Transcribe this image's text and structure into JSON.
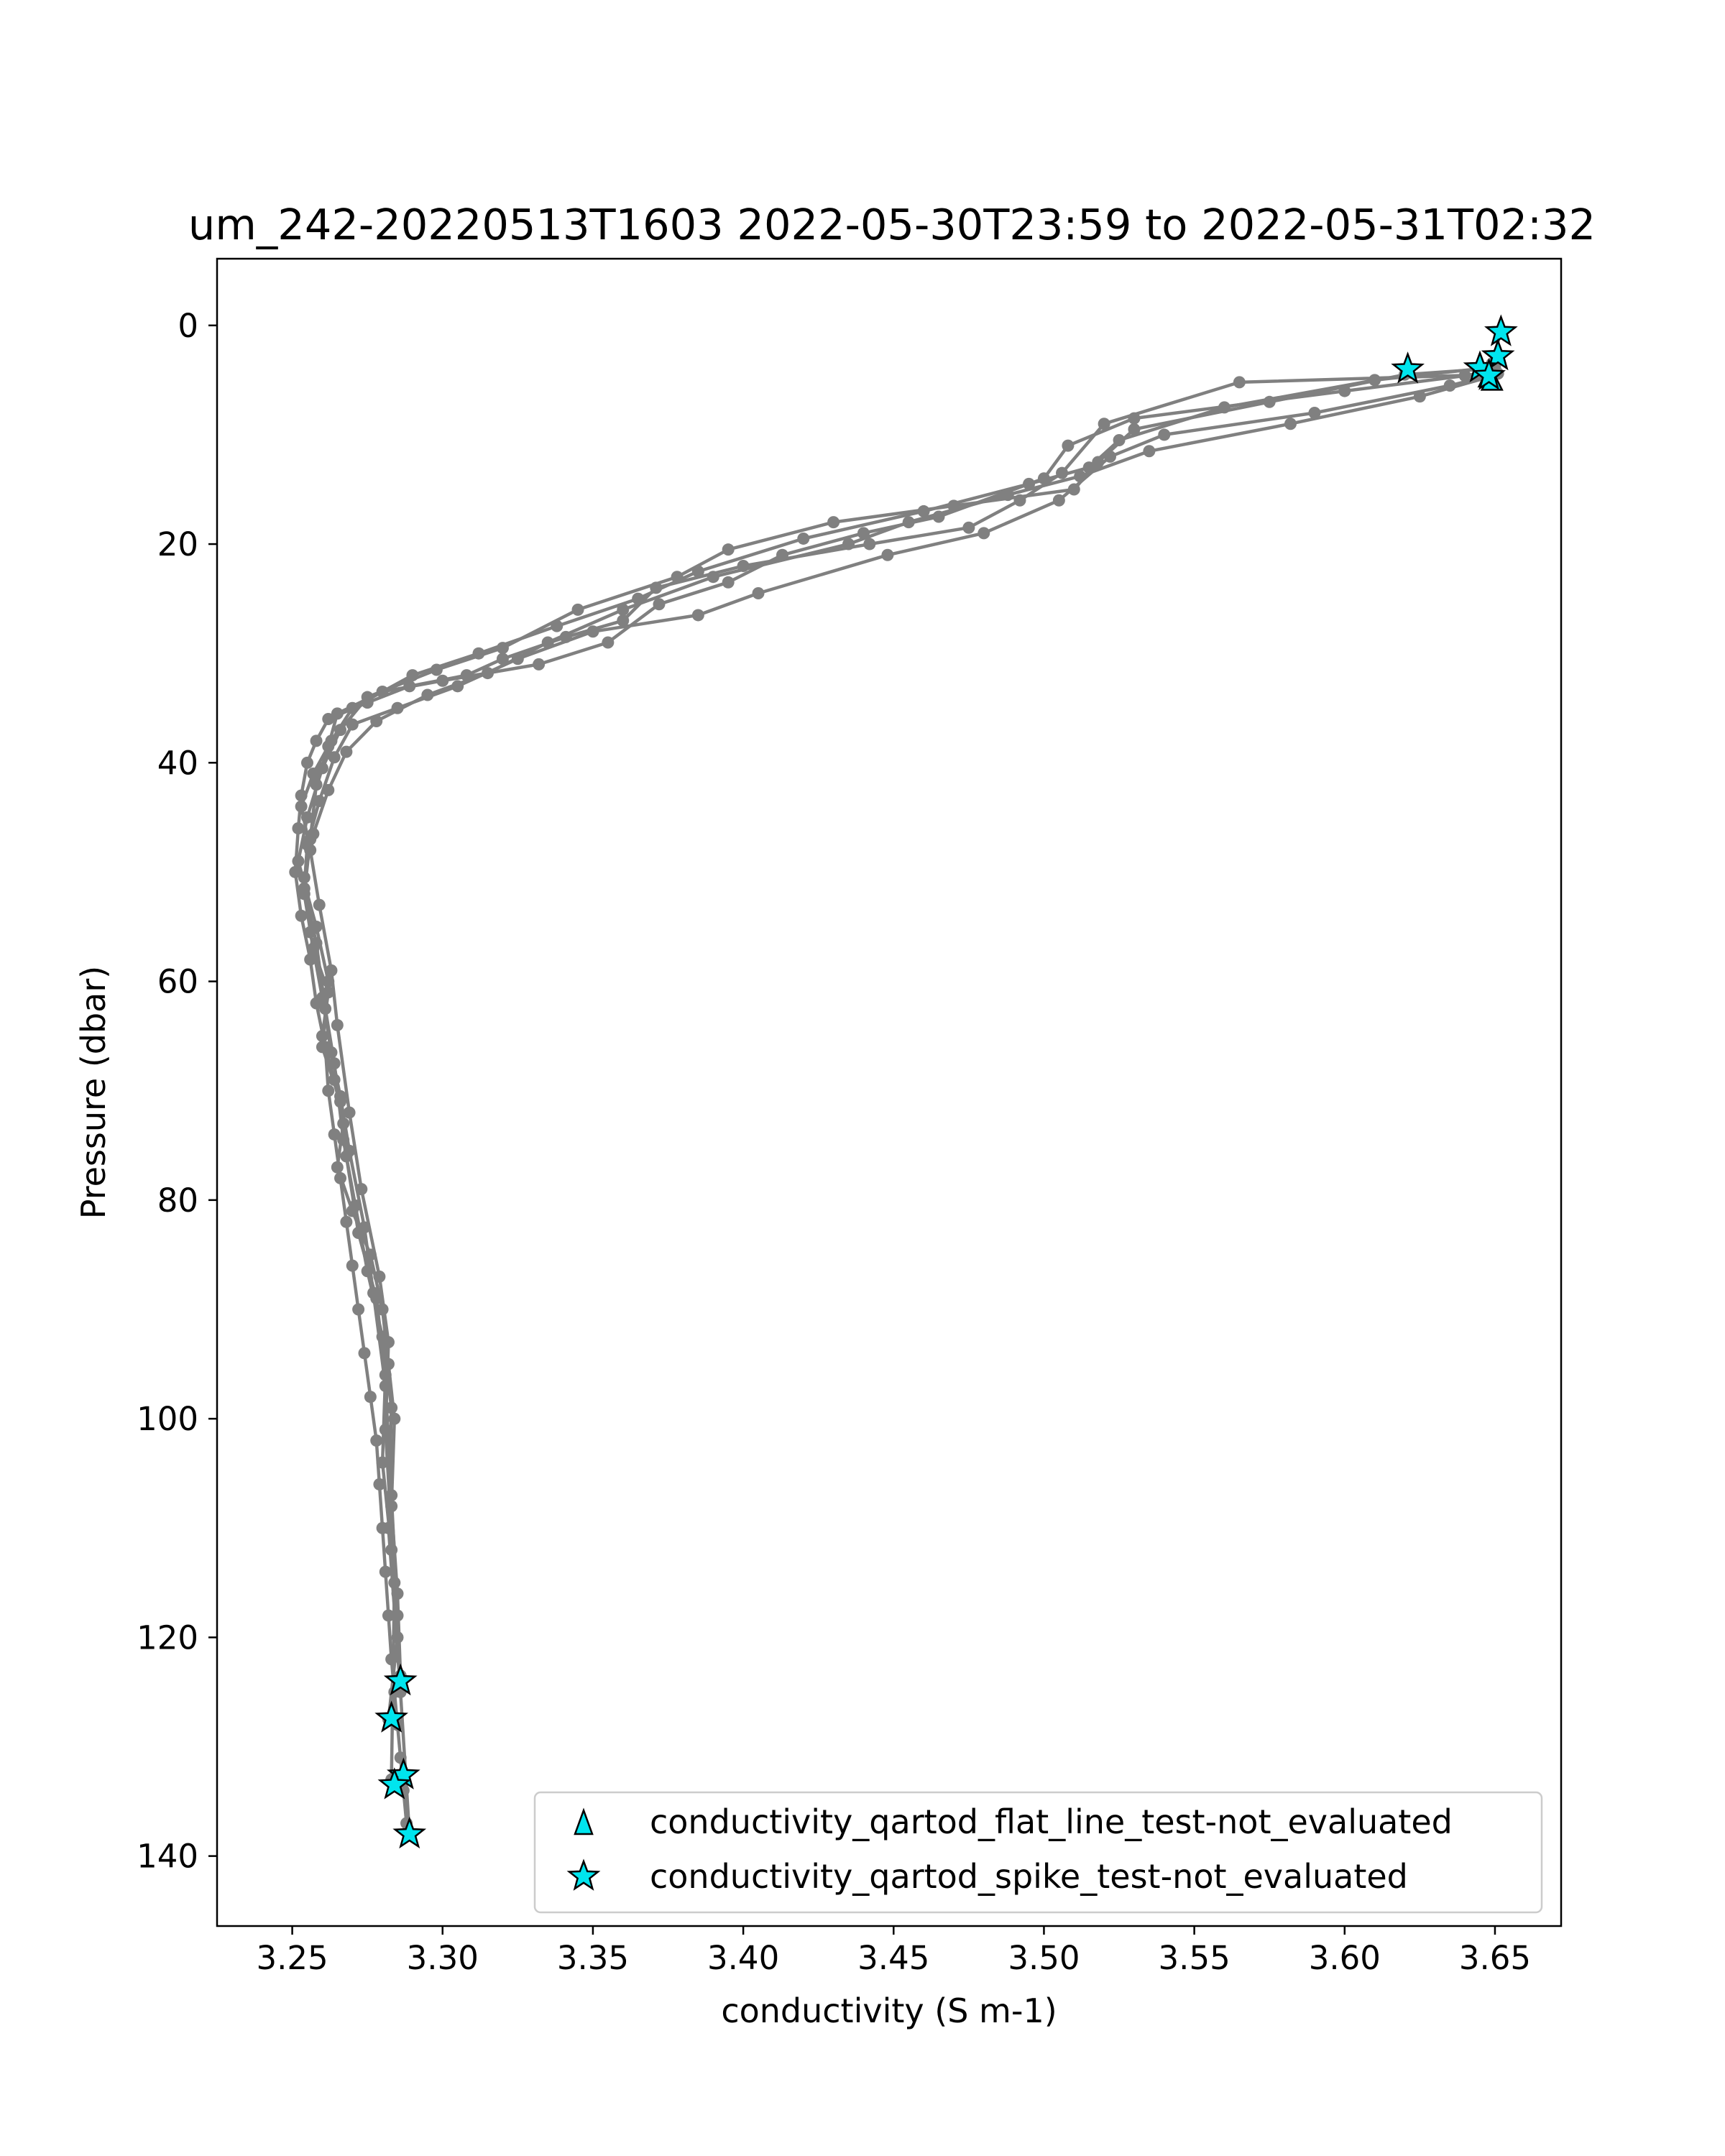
{
  "chart_data": {
    "type": "scatter",
    "title": "um_242-20220513T1603 2022-05-30T23:59 to 2022-05-31T02:32",
    "xlabel": "conductivity (S m-1)",
    "ylabel": "Pressure (dbar)",
    "xlim": [
      3.225,
      3.672
    ],
    "ylim": [
      146.4,
      -6.1
    ],
    "y_inverted": true,
    "xticks": [
      3.25,
      3.3,
      3.35,
      3.4,
      3.45,
      3.5,
      3.55,
      3.6,
      3.65
    ],
    "xtick_labels": [
      "3.25",
      "3.30",
      "3.35",
      "3.40",
      "3.45",
      "3.50",
      "3.55",
      "3.60",
      "3.65"
    ],
    "yticks": [
      0,
      20,
      40,
      60,
      80,
      100,
      120,
      140
    ],
    "ytick_labels": [
      "0",
      "20",
      "40",
      "60",
      "80",
      "100",
      "120",
      "140"
    ],
    "grid": false,
    "legend_position": "lower-right",
    "profile_color": "#808080",
    "flag_color": "#00e5ee",
    "series": [
      {
        "kind": "profile",
        "x": [
          3.652,
          3.649,
          3.648,
          3.565,
          3.52,
          3.506,
          3.492,
          3.475,
          3.442,
          3.4,
          3.371,
          3.36,
          3.341,
          3.32,
          3.308,
          3.289,
          3.275,
          3.262,
          3.258,
          3.255,
          3.253,
          3.252,
          3.251,
          3.253,
          3.256,
          3.258,
          3.261,
          3.262,
          3.264,
          3.266,
          3.268,
          3.27,
          3.272,
          3.274,
          3.276,
          3.278,
          3.279,
          3.28,
          3.281,
          3.282,
          3.283,
          3.284,
          3.285,
          3.286,
          3.287,
          3.288
        ],
        "y": [
          0.5,
          3.5,
          4.5,
          5.2,
          9.0,
          13.5,
          16.0,
          18.5,
          20.0,
          22.0,
          24.0,
          27.0,
          28.5,
          30.5,
          32.0,
          33.0,
          34.5,
          36.0,
          38.0,
          40.0,
          43.0,
          46.0,
          50.0,
          54.0,
          58.0,
          62.0,
          66.0,
          70.0,
          74.0,
          78.0,
          82.0,
          86.0,
          90.0,
          94.0,
          98.0,
          102.0,
          106.0,
          110.0,
          114.0,
          118.0,
          122.0,
          125.0,
          128.0,
          131.0,
          134.0,
          137.0
        ]
      },
      {
        "kind": "profile",
        "x": [
          3.648,
          3.64,
          3.6,
          3.53,
          3.508,
          3.5,
          3.465,
          3.44,
          3.413,
          3.395,
          3.372,
          3.355,
          3.332,
          3.3,
          3.28,
          3.265,
          3.262,
          3.258,
          3.256,
          3.254,
          3.257,
          3.262,
          3.26,
          3.264,
          3.267,
          3.265,
          3.27,
          3.276,
          3.28,
          3.282,
          3.284,
          3.283,
          3.285,
          3.286
        ],
        "y": [
          4.2,
          4.6,
          6.0,
          8.5,
          11.0,
          14.0,
          17.5,
          19.0,
          21.0,
          23.5,
          25.5,
          29.0,
          31.0,
          32.5,
          33.5,
          35.5,
          38.5,
          42.0,
          47.0,
          52.0,
          57.0,
          61.0,
          65.0,
          69.0,
          73.0,
          77.0,
          81.0,
          85.0,
          90.0,
          95.0,
          100.0,
          108.0,
          116.0,
          123.5
        ]
      },
      {
        "kind": "profile",
        "x": [
          3.646,
          3.62,
          3.575,
          3.53,
          3.518,
          3.51,
          3.47,
          3.43,
          3.395,
          3.378,
          3.345,
          3.32,
          3.298,
          3.275,
          3.266,
          3.26,
          3.255,
          3.252,
          3.258,
          3.262,
          3.26,
          3.266,
          3.268,
          3.272,
          3.278,
          3.281,
          3.28,
          3.283,
          3.285,
          3.282
        ],
        "y": [
          4.0,
          4.5,
          7.0,
          9.5,
          12.5,
          15.0,
          16.5,
          18.0,
          20.5,
          23.0,
          26.0,
          29.5,
          31.5,
          34.0,
          37.0,
          40.5,
          45.0,
          49.0,
          55.0,
          60.0,
          66.0,
          71.0,
          76.0,
          83.0,
          89.0,
          96.0,
          104.0,
          112.0,
          120.0,
          127.5
        ]
      },
      {
        "kind": "profile",
        "x": [
          3.65,
          3.61,
          3.56,
          3.525,
          3.515,
          3.495,
          3.46,
          3.42,
          3.385,
          3.365,
          3.338,
          3.312,
          3.29,
          3.27,
          3.263,
          3.257,
          3.253,
          3.256,
          3.259,
          3.263,
          3.265,
          3.269,
          3.273,
          3.279,
          3.282,
          3.281,
          3.284,
          3.283
        ],
        "y": [
          3.8,
          5.0,
          7.5,
          10.5,
          13.0,
          14.5,
          17.0,
          19.5,
          22.5,
          25.0,
          27.5,
          30.0,
          32.0,
          35.0,
          38.0,
          41.0,
          44.0,
          48.0,
          53.0,
          59.0,
          64.0,
          72.0,
          79.0,
          87.0,
          93.0,
          101.0,
          115.0,
          133.0
        ]
      },
      {
        "kind": "profile",
        "x": [
          3.651,
          3.635,
          3.59,
          3.54,
          3.522,
          3.505,
          3.48,
          3.448,
          3.405,
          3.385,
          3.35,
          3.325,
          3.305,
          3.285,
          3.27,
          3.264,
          3.259,
          3.255,
          3.254,
          3.258,
          3.261,
          3.264,
          3.267,
          3.271,
          3.275,
          3.28,
          3.283,
          3.282,
          3.286,
          3.289
        ],
        "y": [
          4.4,
          5.5,
          8.0,
          10.0,
          12.0,
          16.0,
          19.0,
          21.0,
          24.5,
          26.5,
          28.0,
          30.5,
          33.0,
          35.0,
          36.5,
          39.5,
          43.5,
          47.5,
          51.5,
          56.5,
          62.5,
          67.5,
          74.5,
          80.5,
          86.5,
          92.5,
          99.0,
          110.0,
          125.0,
          138.0
        ]
      },
      {
        "kind": "profile",
        "x": [
          3.647,
          3.625,
          3.582,
          3.535,
          3.512,
          3.488,
          3.455,
          3.435,
          3.39,
          3.36,
          3.335,
          3.315,
          3.295,
          3.278,
          3.268,
          3.262,
          3.257,
          3.254,
          3.256,
          3.26,
          3.263,
          3.266,
          3.269,
          3.274,
          3.277,
          3.281,
          3.283,
          3.285
        ],
        "y": [
          4.8,
          6.5,
          9.0,
          11.5,
          13.8,
          15.5,
          18.0,
          20.0,
          23.0,
          26.0,
          29.0,
          31.8,
          33.8,
          36.2,
          39.0,
          42.5,
          46.5,
          50.5,
          55.5,
          61.5,
          66.5,
          70.5,
          75.5,
          82.5,
          88.5,
          97.0,
          107.0,
          118.0
        ]
      },
      {
        "kind": "flag",
        "label": "conductivity_qartod_flat_line_test-not_evaluated",
        "marker": "triangle",
        "x": [
          3.648,
          3.649
        ],
        "y": [
          4.8,
          5.1
        ]
      },
      {
        "kind": "flag",
        "label": "conductivity_qartod_spike_test-not_evaluated",
        "marker": "star",
        "x": [
          3.652,
          3.651,
          3.621,
          3.645,
          3.648,
          3.286,
          3.283,
          3.287,
          3.284,
          3.289
        ],
        "y": [
          0.6,
          2.8,
          4.0,
          3.9,
          4.6,
          124.0,
          127.4,
          132.6,
          133.5,
          138.0
        ]
      }
    ]
  },
  "legend": {
    "items": [
      {
        "label": "conductivity_qartod_flat_line_test-not_evaluated",
        "marker": "triangle"
      },
      {
        "label": "conductivity_qartod_spike_test-not_evaluated",
        "marker": "star"
      }
    ]
  }
}
